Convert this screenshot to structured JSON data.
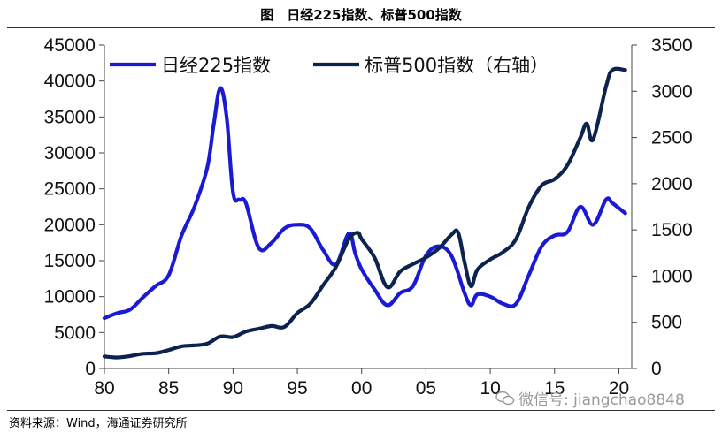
{
  "figure_title": "图　日经225指数、标普500指数",
  "source_label": "资料来源：Wind，海通证券研究所",
  "watermark_text": "微信号: jiangchao8848",
  "chart_data": {
    "type": "line",
    "title": "",
    "x_axis": {
      "range": [
        80,
        121
      ],
      "ticks": [
        80,
        85,
        90,
        95,
        100,
        105,
        110,
        115,
        120
      ],
      "tick_labels": [
        "80",
        "85",
        "90",
        "95",
        "00",
        "05",
        "10",
        "15",
        "20"
      ]
    },
    "y_left": {
      "range": [
        0,
        45000
      ],
      "ticks": [
        0,
        5000,
        10000,
        15000,
        20000,
        25000,
        30000,
        35000,
        40000,
        45000
      ],
      "tick_labels": [
        "0",
        "5000",
        "10000",
        "15000",
        "20000",
        "25000",
        "30000",
        "35000",
        "40000",
        "45000"
      ]
    },
    "y_right": {
      "range": [
        0,
        3500
      ],
      "ticks": [
        0,
        500,
        1000,
        1500,
        2000,
        2500,
        3000,
        3500
      ],
      "tick_labels": [
        "0",
        "500",
        "1000",
        "1500",
        "2000",
        "2500",
        "3000",
        "3500"
      ]
    },
    "legend_position": "top-left",
    "colors": {
      "nikkei": "#1a1ad4",
      "sp500": "#0c2350"
    },
    "series": [
      {
        "name": "日经225指数",
        "axis": "left",
        "x": [
          80,
          81,
          82,
          83,
          84,
          85,
          86,
          87,
          88,
          88.5,
          89,
          89.5,
          90,
          90.5,
          91,
          92,
          93,
          94,
          95,
          96,
          97,
          98,
          99,
          99.5,
          100,
          101,
          102,
          103,
          104,
          105,
          106,
          107,
          108,
          108.5,
          109,
          110,
          111,
          112,
          113,
          114,
          115,
          116,
          117,
          118,
          119,
          119.5,
          120.5
        ],
        "values": [
          7000,
          7700,
          8200,
          9900,
          11500,
          13000,
          18500,
          22500,
          28000,
          34000,
          39000,
          35000,
          24500,
          23500,
          23000,
          16800,
          17500,
          19500,
          20000,
          19500,
          16500,
          14500,
          18800,
          16000,
          13800,
          11000,
          8800,
          10500,
          11500,
          15700,
          17000,
          15600,
          10500,
          8800,
          10300,
          10000,
          9000,
          9000,
          13000,
          17000,
          18500,
          19000,
          22500,
          20000,
          23500,
          23000,
          21600
        ]
      },
      {
        "name": "标普500指数（右轴）",
        "axis": "right",
        "x": [
          80,
          81,
          82,
          83,
          84,
          85,
          86,
          87,
          88,
          89,
          90,
          91,
          92,
          93,
          94,
          95,
          96,
          97,
          98,
          99,
          99.7,
          100,
          101,
          102,
          103,
          104,
          105,
          106,
          107,
          107.5,
          108,
          108.5,
          109,
          110,
          111,
          112,
          113,
          114,
          115,
          116,
          117,
          117.5,
          118,
          119,
          119.5,
          120.5
        ],
        "values": [
          130,
          120,
          135,
          160,
          165,
          200,
          240,
          250,
          270,
          345,
          340,
          400,
          430,
          460,
          450,
          600,
          700,
          900,
          1100,
          1400,
          1470,
          1400,
          1200,
          880,
          1050,
          1130,
          1200,
          1300,
          1450,
          1470,
          1150,
          890,
          1070,
          1180,
          1260,
          1400,
          1750,
          1980,
          2050,
          2200,
          2500,
          2650,
          2480,
          3050,
          3230,
          3230
        ]
      }
    ]
  }
}
